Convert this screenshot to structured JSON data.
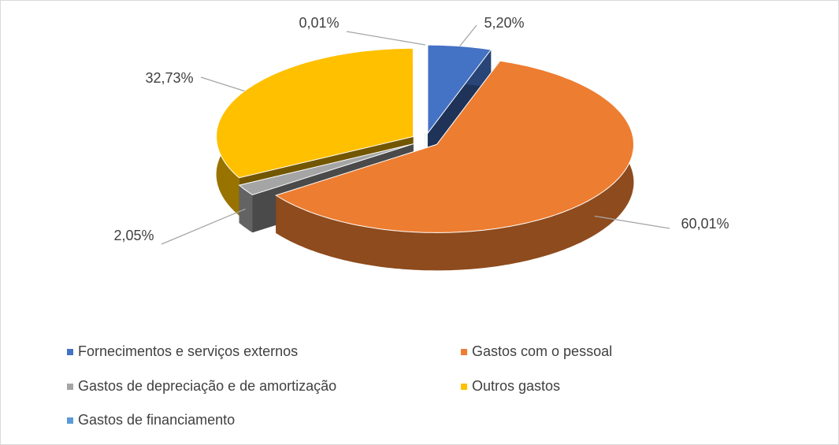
{
  "chart_data": {
    "type": "pie",
    "categories": [
      "Fornecimentos e serviços externos",
      "Gastos com o pessoal",
      "Gastos de depreciação e de amortização",
      "Outros gastos",
      "Gastos de financiamento"
    ],
    "values": [
      5.2,
      60.01,
      2.05,
      32.73,
      0.01
    ],
    "value_labels": [
      "5,20%",
      "60,01%",
      "2,05%",
      "32,73%",
      "0,01%"
    ],
    "colors": [
      "#4472c4",
      "#ed7d31",
      "#a5a5a5",
      "#ffc000",
      "#5b9bd5"
    ],
    "legend": "bottom"
  }
}
